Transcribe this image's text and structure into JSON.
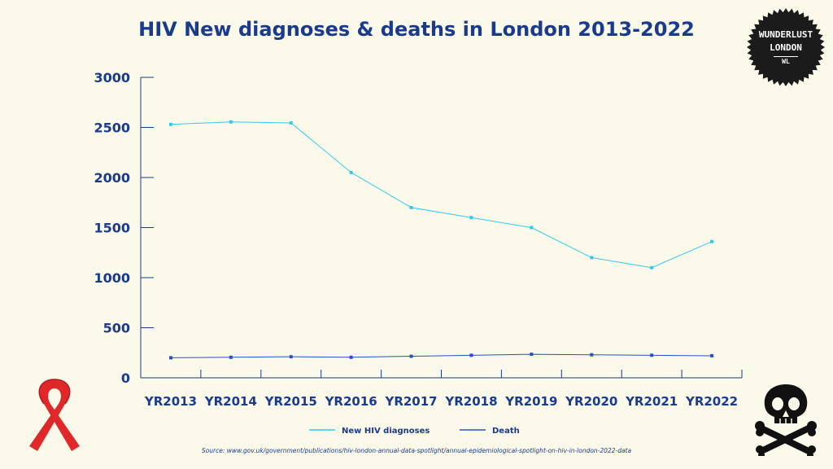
{
  "chart_data": {
    "type": "line",
    "title": "HIV New diagnoses & deaths in London 2013-2022",
    "categories": [
      "YR2013",
      "YR2014",
      "YR2015",
      "YR2016",
      "YR2017",
      "YR2018",
      "YR2019",
      "YR2020",
      "YR2021",
      "YR2022"
    ],
    "series": [
      {
        "name": "New HIV diagnoses",
        "color": "#35c8ee",
        "values": [
          2530,
          2555,
          2545,
          2050,
          1700,
          1600,
          1500,
          1200,
          1100,
          1360
        ]
      },
      {
        "name": "Death",
        "color": "#2750c8",
        "values": [
          200,
          205,
          210,
          205,
          215,
          225,
          235,
          230,
          225,
          220
        ]
      }
    ],
    "ylim": [
      0,
      3000
    ],
    "yticks": [
      "0",
      "500",
      "1000",
      "1500",
      "2000",
      "2500",
      "3000"
    ],
    "grid": false,
    "legend_position": "bottom"
  },
  "source": "Source: www.gov.uk/government/publications/hiv-london-annual-data-spotlight/annual-epidemiological-spotlight-on-hiv-in-london-2022-data",
  "badge": {
    "line1": "WUNDERLUST",
    "line2": "LONDON",
    "line3": "WL"
  },
  "colors": {
    "text": "#1a3a8c",
    "background": "#fbf9ea"
  },
  "icons": {
    "left": "red-ribbon-icon",
    "right": "skull-crossbones-icon"
  }
}
